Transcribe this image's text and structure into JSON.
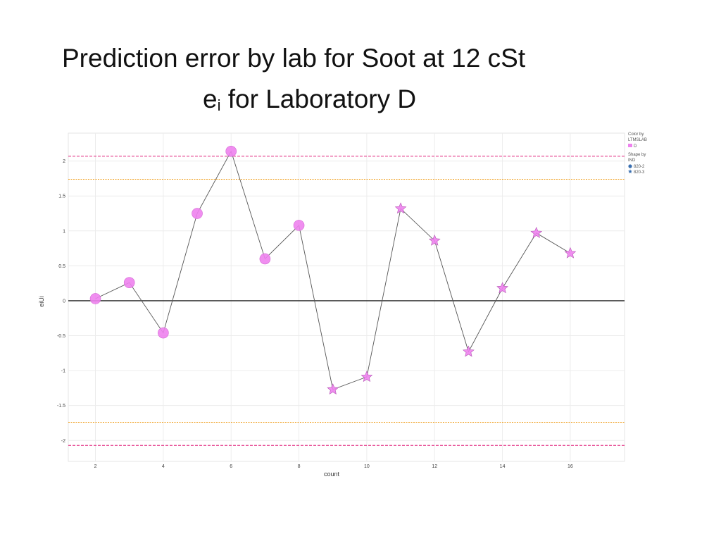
{
  "slide": {
    "title_line1": "Prediction error by lab for Soot at 12 cSt",
    "title_line2_main": "e",
    "title_line2_sub": "i",
    "title_line2_rest": " for Laboratory D"
  },
  "chart_data": {
    "type": "scatter",
    "xlabel": "count",
    "ylabel": "eiUi",
    "xlim": [
      1.2,
      17.6
    ],
    "ylim": [
      -2.3,
      2.4
    ],
    "x_ticks": [
      2,
      4,
      6,
      8,
      10,
      12,
      14,
      16
    ],
    "x_tick_labels": [
      "2",
      "4",
      "6",
      "8",
      "10",
      "12",
      "14",
      "16"
    ],
    "y_ticks": [
      2,
      1.5,
      1,
      0.5,
      0,
      -0.5,
      -1,
      -1.5,
      -2
    ],
    "y_tick_labels": [
      "2",
      "1.5",
      "1",
      "0.5",
      "0",
      "-0.5",
      "-1",
      "-1.5",
      "-2"
    ],
    "grid": true,
    "reference_lines": [
      {
        "y": 2.07,
        "color": "#e0207a",
        "style": "dashed"
      },
      {
        "y": 1.74,
        "color": "#f0a020",
        "style": "dotted"
      },
      {
        "y": 0,
        "color": "#222222",
        "style": "solid"
      },
      {
        "y": -1.74,
        "color": "#f0a020",
        "style": "dotted"
      },
      {
        "y": -2.07,
        "color": "#e0207a",
        "style": "dashed"
      }
    ],
    "point_color": "#ee82ee",
    "line_color": "#555555",
    "series": [
      {
        "name": "820-2",
        "shape": "circle",
        "x": [
          2,
          3,
          4,
          5,
          6,
          7,
          8
        ],
        "y": [
          0.03,
          0.26,
          -0.46,
          1.25,
          2.14,
          0.6,
          1.08
        ]
      },
      {
        "name": "820-3",
        "shape": "star",
        "x": [
          9,
          10,
          11,
          12,
          13,
          14,
          15,
          16
        ],
        "y": [
          -1.27,
          -1.09,
          1.32,
          0.86,
          -0.73,
          0.18,
          0.97,
          0.68
        ]
      }
    ],
    "legend": {
      "placement": "top-right",
      "color_title_1": "Color by",
      "color_title_2": "LTMSLAB",
      "color_entry": "D",
      "shape_title_1": "Shape by",
      "shape_title_2": "IND",
      "shape_entries": [
        "820-2",
        "820-3"
      ],
      "shape_entry_colors": [
        "#3a6fb0",
        "#3a6fb0"
      ]
    }
  }
}
